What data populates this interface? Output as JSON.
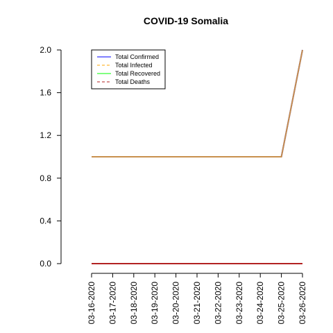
{
  "chart_data": {
    "type": "line",
    "title": "COVID-19 Somalia",
    "xlabel": "",
    "ylabel": "",
    "categories": [
      "03-16-2020",
      "03-17-2020",
      "03-18-2020",
      "03-19-2020",
      "03-20-2020",
      "03-21-2020",
      "03-22-2020",
      "03-23-2020",
      "03-24-2020",
      "03-25-2020",
      "03-26-2020"
    ],
    "ylim": [
      0,
      2
    ],
    "yticks": [
      "0.0",
      "0.4",
      "0.8",
      "1.2",
      "1.6",
      "2.0"
    ],
    "grid": false,
    "legend_position": "top-left",
    "series": [
      {
        "name": "Total Confirmed",
        "color": "#0000ff",
        "dash": "solid",
        "values": [
          1,
          1,
          1,
          1,
          1,
          1,
          1,
          1,
          1,
          1,
          2
        ]
      },
      {
        "name": "Total Infected",
        "color": "#ffa500",
        "dash": "dashed",
        "values": [
          1,
          1,
          1,
          1,
          1,
          1,
          1,
          1,
          1,
          1,
          2
        ]
      },
      {
        "name": "Total Recovered",
        "color": "#00ff00",
        "dash": "solid",
        "values": [
          0,
          0,
          0,
          0,
          0,
          0,
          0,
          0,
          0,
          0,
          0
        ]
      },
      {
        "name": "Total Deaths",
        "color": "#b22222",
        "dash": "dashed",
        "values": [
          0,
          0,
          0,
          0,
          0,
          0,
          0,
          0,
          0,
          0,
          0
        ]
      }
    ],
    "overlay_colors": {
      "confirmed_infected": "#c8904d",
      "recovered_deaths": "#b22222"
    }
  }
}
